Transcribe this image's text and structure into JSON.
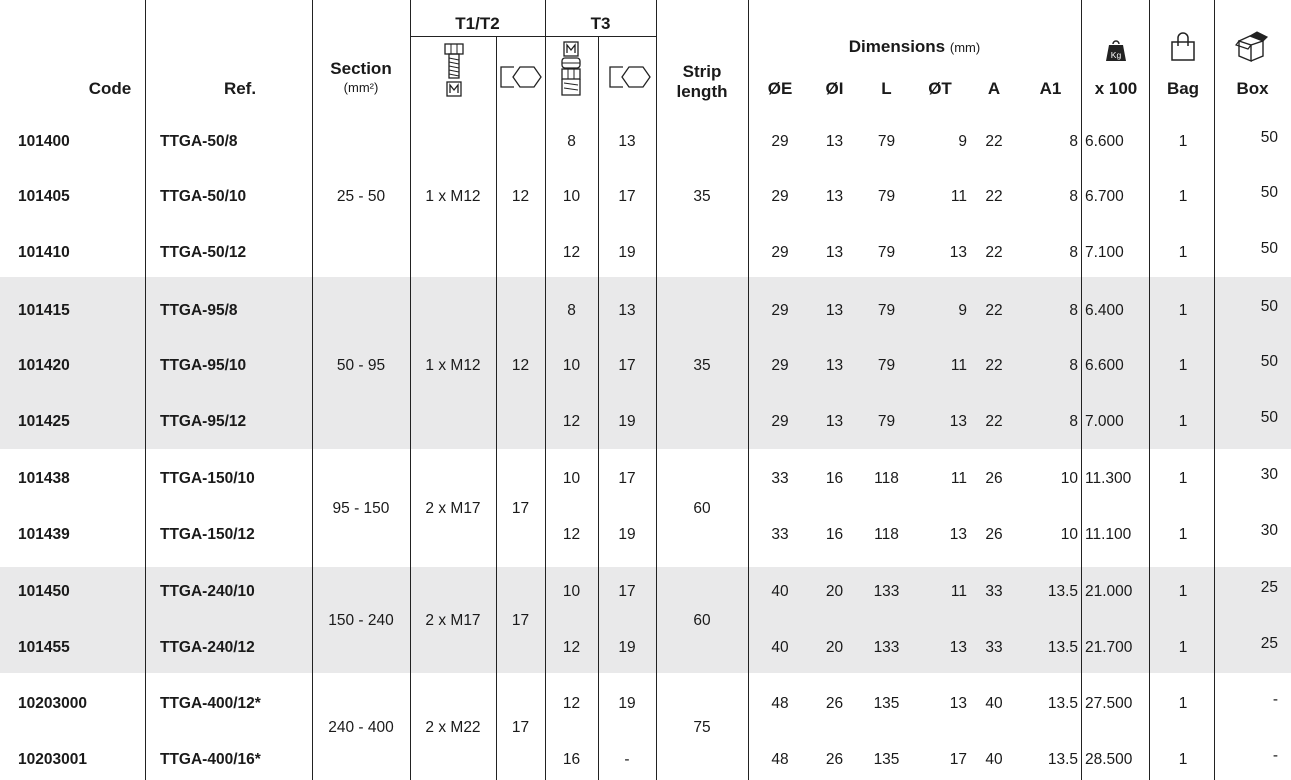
{
  "header": {
    "code": "Code",
    "ref": "Ref.",
    "section": "Section",
    "section_unit": "(mm²)",
    "t1t2": "T1/T2",
    "t3": "T3",
    "strip_line1": "Strip",
    "strip_line2": "length",
    "dimensions": "Dimensions",
    "dimensions_unit": "(mm)",
    "oe": "ØE",
    "oi": "ØI",
    "l": "L",
    "ot": "ØT",
    "a": "A",
    "a1": "A1",
    "weight_icon_label": "Kg",
    "weight": "x 100",
    "bag": "Bag",
    "box": "Box"
  },
  "groups": [
    {
      "section": "25 - 50",
      "bolt": "1 x M12",
      "key": "12",
      "strip": "35"
    },
    {
      "section": "50 - 95",
      "bolt": "1 x M12",
      "key": "12",
      "strip": "35"
    },
    {
      "section": "95 - 150",
      "bolt": "2 x M17",
      "key": "17",
      "strip": "60"
    },
    {
      "section": "150 - 240",
      "bolt": "2 x M17",
      "key": "17",
      "strip": "60"
    },
    {
      "section": "240 - 400",
      "bolt": "2 x M22",
      "key": "17",
      "strip": "75"
    }
  ],
  "rows": [
    {
      "code": "101400",
      "ref": "TTGA-50/8",
      "t3m": "8",
      "t3k": "13",
      "oe": "29",
      "oi": "13",
      "l": "79",
      "ot": "9",
      "a": "22",
      "a1": "8",
      "weight": "6.600",
      "bag": "1",
      "box": "50"
    },
    {
      "code": "101405",
      "ref": "TTGA-50/10",
      "t3m": "10",
      "t3k": "17",
      "oe": "29",
      "oi": "13",
      "l": "79",
      "ot": "11",
      "a": "22",
      "a1": "8",
      "weight": "6.700",
      "bag": "1",
      "box": "50"
    },
    {
      "code": "101410",
      "ref": "TTGA-50/12",
      "t3m": "12",
      "t3k": "19",
      "oe": "29",
      "oi": "13",
      "l": "79",
      "ot": "13",
      "a": "22",
      "a1": "8",
      "weight": "7.100",
      "bag": "1",
      "box": "50"
    },
    {
      "code": "101415",
      "ref": "TTGA-95/8",
      "t3m": "8",
      "t3k": "13",
      "oe": "29",
      "oi": "13",
      "l": "79",
      "ot": "9",
      "a": "22",
      "a1": "8",
      "weight": "6.400",
      "bag": "1",
      "box": "50"
    },
    {
      "code": "101420",
      "ref": "TTGA-95/10",
      "t3m": "10",
      "t3k": "17",
      "oe": "29",
      "oi": "13",
      "l": "79",
      "ot": "11",
      "a": "22",
      "a1": "8",
      "weight": "6.600",
      "bag": "1",
      "box": "50"
    },
    {
      "code": "101425",
      "ref": "TTGA-95/12",
      "t3m": "12",
      "t3k": "19",
      "oe": "29",
      "oi": "13",
      "l": "79",
      "ot": "13",
      "a": "22",
      "a1": "8",
      "weight": "7.000",
      "bag": "1",
      "box": "50"
    },
    {
      "code": "101438",
      "ref": "TTGA-150/10",
      "t3m": "10",
      "t3k": "17",
      "oe": "33",
      "oi": "16",
      "l": "118",
      "ot": "11",
      "a": "26",
      "a1": "10",
      "weight": "11.300",
      "bag": "1",
      "box": "30"
    },
    {
      "code": "101439",
      "ref": "TTGA-150/12",
      "t3m": "12",
      "t3k": "19",
      "oe": "33",
      "oi": "16",
      "l": "118",
      "ot": "13",
      "a": "26",
      "a1": "10",
      "weight": "11.100",
      "bag": "1",
      "box": "30"
    },
    {
      "code": "101450",
      "ref": "TTGA-240/10",
      "t3m": "10",
      "t3k": "17",
      "oe": "40",
      "oi": "20",
      "l": "133",
      "ot": "11",
      "a": "33",
      "a1": "13.5",
      "weight": "21.000",
      "bag": "1",
      "box": "25"
    },
    {
      "code": "101455",
      "ref": "TTGA-240/12",
      "t3m": "12",
      "t3k": "19",
      "oe": "40",
      "oi": "20",
      "l": "133",
      "ot": "13",
      "a": "33",
      "a1": "13.5",
      "weight": "21.700",
      "bag": "1",
      "box": "25"
    },
    {
      "code": "10203000",
      "ref": "TTGA-400/12*",
      "t3m": "12",
      "t3k": "19",
      "oe": "48",
      "oi": "26",
      "l": "135",
      "ot": "13",
      "a": "40",
      "a1": "13.5",
      "weight": "27.500",
      "bag": "1",
      "box": "-"
    },
    {
      "code": "10203001",
      "ref": "TTGA-400/16*",
      "t3m": "16",
      "t3k": "-",
      "oe": "48",
      "oi": "26",
      "l": "135",
      "ot": "17",
      "a": "40",
      "a1": "13.5",
      "weight": "28.500",
      "bag": "1",
      "box": "-"
    }
  ],
  "icons": {
    "bolt_icon": "hex-bolt-icon",
    "hex_key_icon": "hexagon-key-icon",
    "nut_icon": "hex-nut-icon",
    "weight_icon": "weight-icon",
    "bag_icon": "shopping-bag-icon",
    "box_icon": "box-icon"
  },
  "colors": {
    "band": "#e9e9ea",
    "text": "#1a1a1a",
    "line": "#222222"
  }
}
